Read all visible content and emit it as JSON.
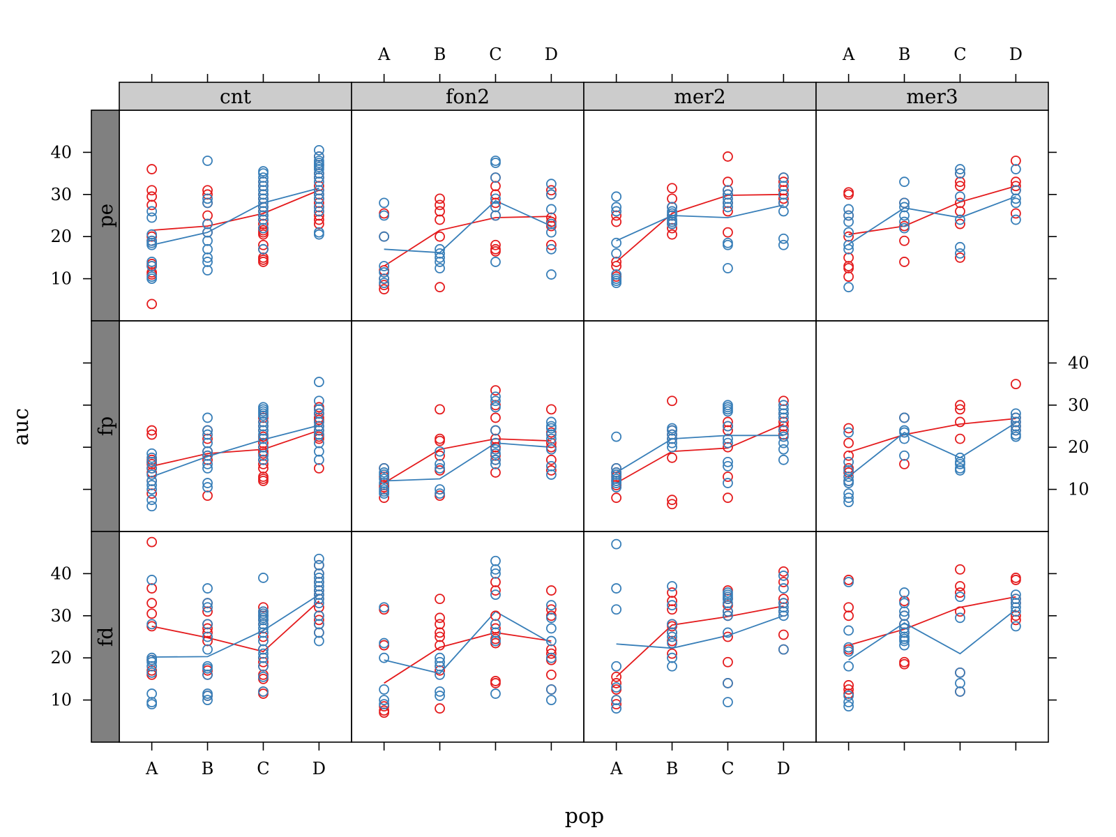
{
  "chart_data": {
    "type": "scatter",
    "xlabel": "pop",
    "ylabel": "auc",
    "categories": [
      "A",
      "B",
      "C",
      "D"
    ],
    "ylim": [
      0,
      50
    ],
    "yticks": [
      10,
      20,
      30,
      40
    ],
    "grid": false,
    "layout": "trellis 4 columns x 3 rows",
    "column_panels": [
      "cnt",
      "fon2",
      "mer2",
      "mer3"
    ],
    "row_panels": [
      "pe",
      "fp",
      "fd"
    ],
    "colors": {
      "red": "#e41a1c",
      "blue": "#377eb8",
      "strip_top": "#cccccc",
      "strip_side": "#808080"
    },
    "panels": [
      {
        "col": "cnt",
        "row": "pe",
        "red": {
          "A": [
            36,
            31,
            29.5,
            27.5,
            20,
            19,
            13.5,
            13,
            11.5,
            11,
            4
          ],
          "B": [
            31,
            30,
            28,
            25,
            23,
            21
          ],
          "C": [
            33,
            32,
            30,
            29,
            27,
            26,
            25,
            24,
            23,
            22,
            21.5,
            21,
            20.5,
            18,
            17,
            15,
            14.5,
            14
          ],
          "D": [
            39,
            37,
            35,
            34,
            32,
            31,
            30,
            29,
            28,
            27,
            26,
            25,
            24,
            23
          ]
        },
        "blue": {
          "A": [
            26,
            24.5,
            20.5,
            19,
            18.5,
            18,
            14,
            13,
            10.5,
            10
          ],
          "B": [
            38,
            29,
            28,
            23,
            21,
            19,
            17,
            15,
            14,
            12
          ],
          "C": [
            35.5,
            35,
            34,
            33,
            32,
            31,
            30,
            29,
            28,
            27,
            26,
            25,
            24,
            22,
            17
          ],
          "D": [
            40.5,
            39,
            38,
            37.5,
            37,
            36.5,
            36,
            35,
            34,
            33,
            31,
            30,
            29,
            27,
            26,
            21,
            20.5
          ]
        },
        "red_mean": [
          21.5,
          22.5,
          25.5,
          31
        ],
        "blue_mean": [
          18,
          21,
          28,
          31.5
        ]
      },
      {
        "col": "fon2",
        "row": "pe",
        "red": {
          "A": [
            25.5,
            20,
            12,
            10,
            8.5,
            7.5
          ],
          "B": [
            29,
            27.5,
            26,
            24,
            20,
            8
          ],
          "C": [
            34,
            32,
            30,
            28,
            25,
            18,
            17,
            16.5
          ],
          "D": [
            31,
            30,
            24.5,
            23.5,
            22.5,
            18
          ]
        },
        "blue": {
          "A": [
            28,
            25,
            20,
            13,
            11.5,
            10,
            9
          ],
          "B": [
            17,
            16,
            15,
            14,
            12.5
          ],
          "C": [
            38,
            37.5,
            34,
            29,
            27,
            25,
            14
          ],
          "D": [
            32.5,
            30,
            26.5,
            23,
            21,
            17,
            11
          ]
        },
        "red_mean": [
          13,
          21.5,
          24.5,
          24.8
        ],
        "blue_mean": [
          17,
          16.2,
          28.5,
          22.5
        ]
      },
      {
        "col": "mer2",
        "row": "pe",
        "red": {
          "A": [
            25,
            23.5,
            14,
            13,
            10.5
          ],
          "B": [
            31.5,
            29,
            27,
            25,
            23,
            22,
            20.5
          ],
          "C": [
            39,
            33,
            31,
            30,
            28,
            26,
            21
          ],
          "D": [
            34,
            33,
            31,
            30,
            29,
            28
          ]
        },
        "blue": {
          "A": [
            29.5,
            27,
            26,
            18.5,
            16,
            11,
            10,
            9.5,
            9
          ],
          "B": [
            27,
            26,
            25.5,
            25,
            24,
            23.5,
            23
          ],
          "C": [
            31,
            30,
            29,
            28,
            27,
            18.5,
            18,
            12.5
          ],
          "D": [
            34,
            32,
            30,
            28,
            26,
            19.5,
            18
          ]
        },
        "red_mean": [
          14,
          25.5,
          29.8,
          30
        ],
        "blue_mean": [
          19,
          25,
          24.5,
          27.5
        ]
      },
      {
        "col": "mer3",
        "row": "pe",
        "red": {
          "A": [
            30.5,
            30,
            25,
            20,
            15,
            13,
            12.5,
            10.5
          ],
          "B": [
            28,
            22.5,
            19,
            14
          ],
          "C": [
            35,
            33,
            32,
            28,
            26,
            23,
            15
          ],
          "D": [
            38,
            33,
            32,
            31,
            25.5
          ]
        },
        "blue": {
          "A": [
            26.5,
            25,
            23.5,
            21,
            18,
            17,
            8
          ],
          "B": [
            33,
            28,
            27,
            25,
            23.5,
            22
          ],
          "C": [
            36,
            35,
            29.5,
            24,
            17.5,
            16
          ],
          "D": [
            36,
            31,
            29,
            28,
            24
          ]
        },
        "red_mean": [
          20.5,
          22.5,
          28.2,
          32
        ],
        "blue_mean": [
          18.2,
          26.8,
          24.5,
          29.5
        ]
      },
      {
        "col": "cnt",
        "row": "fp",
        "red": {
          "A": [
            24,
            23,
            17,
            16.5,
            16,
            15,
            14,
            12,
            9
          ],
          "B": [
            24,
            22,
            19,
            18,
            17,
            8.5
          ],
          "C": [
            27,
            26,
            25,
            24,
            22.5,
            21,
            20,
            19,
            18.5,
            17,
            16,
            15,
            13,
            12.5,
            12
          ],
          "D": [
            29.5,
            29,
            28,
            27,
            26.5,
            26,
            25,
            24,
            23,
            22.5,
            22,
            15
          ]
        },
        "blue": {
          "A": [
            18.5,
            17.5,
            16.5,
            15,
            13.5,
            12,
            11,
            10,
            7.5,
            6
          ],
          "B": [
            27,
            24,
            23,
            21,
            19,
            18,
            16,
            15,
            11.5,
            10.5
          ],
          "C": [
            29.5,
            29,
            28.5,
            28,
            27.5,
            26,
            25,
            24,
            23,
            22,
            20,
            18,
            17
          ],
          "D": [
            35.5,
            31,
            29,
            28,
            26,
            25,
            24,
            23,
            21,
            19,
            17
          ]
        },
        "red_mean": [
          15.5,
          18.5,
          19.5,
          24
        ],
        "blue_mean": [
          13,
          17.8,
          21.8,
          25.2
        ]
      },
      {
        "col": "fon2",
        "row": "fp",
        "red": {
          "A": [
            15,
            13,
            11,
            10.5,
            8
          ],
          "B": [
            29,
            22,
            21.5,
            18,
            14.5,
            8.5
          ],
          "C": [
            33.5,
            30,
            27,
            24,
            22,
            20,
            18,
            17,
            14
          ],
          "D": [
            29,
            23.5,
            21,
            20,
            17,
            14.5
          ]
        },
        "blue": {
          "A": [
            15,
            14,
            13.5,
            12.5,
            11.5,
            10,
            9.5,
            9
          ],
          "B": [
            19,
            16,
            15,
            10,
            9
          ],
          "C": [
            32,
            31,
            29.5,
            24,
            21,
            19.5,
            18.5,
            17,
            16
          ],
          "D": [
            26,
            25,
            24.5,
            23,
            22,
            19.5,
            15.5,
            13.5
          ]
        },
        "red_mean": [
          11.5,
          19.5,
          22,
          21.5
        ],
        "blue_mean": [
          12,
          12.5,
          21,
          20
        ]
      },
      {
        "col": "mer2",
        "row": "fp",
        "red": {
          "A": [
            15,
            14,
            13,
            12,
            11,
            8
          ],
          "B": [
            31,
            24,
            23,
            22,
            17.5,
            7.5,
            6.5
          ],
          "C": [
            26,
            25,
            24,
            20,
            13,
            8
          ],
          "D": [
            31,
            28,
            26,
            25,
            24,
            23
          ]
        },
        "blue": {
          "A": [
            22.5,
            15,
            14,
            13.5,
            12.5,
            12,
            11.5,
            10.5
          ],
          "B": [
            24.5,
            24,
            23,
            22,
            21,
            20
          ],
          "C": [
            30,
            29.5,
            29,
            28.5,
            25,
            22,
            21,
            16.5,
            15.5,
            11.5
          ],
          "D": [
            30,
            29,
            28,
            27,
            24,
            22.5,
            21,
            19.5,
            17
          ]
        },
        "red_mean": [
          11.5,
          19,
          19.8,
          25.5
        ],
        "blue_mean": [
          14,
          22,
          22.8,
          22.8
        ]
      },
      {
        "col": "mer3",
        "row": "fp",
        "red": {
          "A": [
            24.5,
            21,
            18,
            15,
            14,
            12
          ],
          "B": [
            27,
            16
          ],
          "C": [
            30,
            29,
            26,
            22
          ],
          "D": [
            35,
            27,
            26,
            25,
            24
          ]
        },
        "blue": {
          "A": [
            23.5,
            16.5,
            14.5,
            13,
            12,
            11.5,
            9,
            8,
            7
          ],
          "B": [
            27,
            24,
            23.5,
            22,
            18
          ],
          "C": [
            17.5,
            16.5,
            16,
            15,
            14.5
          ],
          "D": [
            28,
            27,
            26,
            25,
            24,
            23,
            22.5
          ]
        },
        "red_mean": [
          18.8,
          23,
          25.5,
          26.8
        ],
        "blue_mean": [
          13,
          23.5,
          17.5,
          25.8
        ]
      },
      {
        "col": "cnt",
        "row": "fd",
        "red": {
          "A": [
            47.5,
            36.5,
            33,
            30.5,
            27.5,
            19.5,
            17,
            16
          ],
          "B": [
            33,
            31,
            28,
            27,
            26,
            24,
            17,
            16,
            11
          ],
          "C": [
            32,
            31,
            30,
            29,
            28,
            25,
            22,
            20,
            19,
            18,
            16,
            15,
            12,
            11.5
          ],
          "D": [
            42,
            40,
            38,
            36,
            35,
            34,
            32,
            30,
            29,
            28,
            26
          ]
        },
        "blue": {
          "A": [
            38.5,
            28,
            20,
            19.5,
            19,
            18,
            16.5,
            11.5,
            9.5,
            9
          ],
          "B": [
            36.5,
            33,
            32,
            28,
            25,
            22,
            18,
            17.5,
            16,
            11.5,
            11,
            10
          ],
          "C": [
            39,
            31,
            30.5,
            30,
            29.5,
            29,
            28,
            27,
            26,
            24,
            22,
            21,
            20,
            18,
            15.5,
            12
          ],
          "D": [
            43.5,
            42,
            40,
            39,
            38,
            37,
            36,
            35,
            34,
            33,
            30,
            28,
            26,
            24
          ]
        },
        "red_mean": [
          27.5,
          24.8,
          21.5,
          33.5
        ],
        "blue_mean": [
          20.2,
          20.3,
          26.5,
          35
        ]
      },
      {
        "col": "fon2",
        "row": "fd",
        "red": {
          "A": [
            31.5,
            23,
            8.5,
            7.5,
            7
          ],
          "B": [
            34,
            29.5,
            28,
            26,
            25,
            23,
            17,
            8
          ],
          "C": [
            38,
            36,
            30,
            27,
            24.5,
            23.5,
            14.5,
            14
          ],
          "D": [
            36,
            31.5,
            30,
            22,
            21,
            19.5,
            16,
            12.5
          ]
        },
        "blue": {
          "A": [
            32,
            23.5,
            20,
            12.5,
            10,
            9
          ],
          "B": [
            20,
            19,
            18,
            16,
            12,
            11
          ],
          "C": [
            43,
            41,
            40,
            35,
            28,
            26,
            24,
            11.5
          ],
          "D": [
            32.5,
            29.5,
            27,
            24,
            20,
            12.5,
            10
          ]
        },
        "red_mean": [
          14,
          22.5,
          26,
          24
        ],
        "blue_mean": [
          19.5,
          16.3,
          31,
          23.5
        ]
      },
      {
        "col": "mer2",
        "row": "fd",
        "red": {
          "A": [
            15.5,
            14,
            12.5,
            10,
            9
          ],
          "B": [
            35.5,
            33.5,
            31.5,
            28,
            27.5,
            26,
            24,
            21
          ],
          "C": [
            36,
            34,
            32.5,
            31,
            30,
            25,
            19,
            14
          ],
          "D": [
            40.5,
            38,
            34,
            33,
            31,
            25.5,
            22
          ]
        },
        "blue": {
          "A": [
            47,
            36.5,
            31.5,
            18,
            13,
            10,
            8
          ],
          "B": [
            37,
            32.5,
            28,
            26,
            25,
            23.5,
            20,
            18
          ],
          "C": [
            35.5,
            35,
            34.5,
            34,
            33,
            31,
            30,
            26,
            14,
            9.5
          ],
          "D": [
            39.5,
            36.5,
            33,
            32,
            31,
            30,
            22
          ]
        },
        "red_mean": [
          15.5,
          27.8,
          29.8,
          32.3
        ],
        "blue_mean": [
          23.3,
          22.3,
          25.3,
          30
        ]
      },
      {
        "col": "mer3",
        "row": "fd",
        "red": {
          "A": [
            38.5,
            32,
            30,
            22,
            13.5,
            12.5,
            11.5
          ],
          "B": [
            33.5,
            30,
            28,
            26,
            19,
            18.5
          ],
          "C": [
            41,
            37,
            35.5,
            31,
            16.5,
            12
          ],
          "D": [
            39,
            38.5,
            34,
            33,
            30,
            29
          ]
        },
        "blue": {
          "A": [
            38,
            26.5,
            22.5,
            21.5,
            18,
            11,
            9.5,
            8.5
          ],
          "B": [
            35.5,
            33,
            31,
            30,
            28,
            27,
            26,
            25,
            24.5,
            24,
            23
          ],
          "C": [
            34.5,
            29.5,
            16.5,
            14,
            12
          ],
          "D": [
            35,
            34,
            33,
            32,
            31,
            27.5
          ]
        },
        "red_mean": [
          23,
          26.8,
          32,
          34.5
        ],
        "blue_mean": [
          19.5,
          28.3,
          21,
          31.5
        ]
      }
    ]
  }
}
